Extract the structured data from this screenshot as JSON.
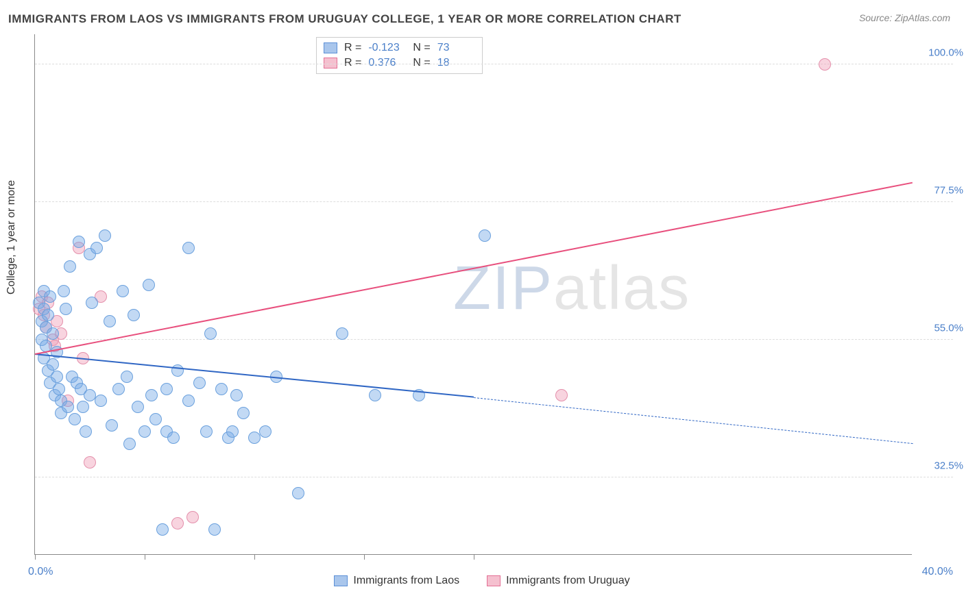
{
  "header": {
    "title": "IMMIGRANTS FROM LAOS VS IMMIGRANTS FROM URUGUAY COLLEGE, 1 YEAR OR MORE CORRELATION CHART",
    "source": "Source: ZipAtlas.com"
  },
  "watermark": {
    "part1": "ZIP",
    "part2": "atlas"
  },
  "axes": {
    "y_title": "College, 1 year or more",
    "x_min_label": "0.0%",
    "x_max_label": "40.0%",
    "xlim": [
      0,
      40
    ],
    "ylim": [
      20,
      105
    ],
    "y_ticks": [
      {
        "v": 32.5,
        "label": "32.5%"
      },
      {
        "v": 55.0,
        "label": "55.0%"
      },
      {
        "v": 77.5,
        "label": "77.5%"
      },
      {
        "v": 100.0,
        "label": "100.0%"
      }
    ],
    "x_tick_positions": [
      0,
      5,
      10,
      15,
      20
    ]
  },
  "legend_top": {
    "rows": [
      {
        "swatch_fill": "#a9c6ec",
        "swatch_border": "#5b8fd6",
        "r_label": "R =",
        "r": "-0.123",
        "n_label": "N =",
        "n": "73"
      },
      {
        "swatch_fill": "#f5c0cf",
        "swatch_border": "#e36f94",
        "r_label": "R =",
        "r": "0.376",
        "n_label": "N =",
        "n": "18"
      }
    ]
  },
  "legend_bottom": {
    "items": [
      {
        "swatch_fill": "#a9c6ec",
        "swatch_border": "#5b8fd6",
        "label": "Immigrants from Laos"
      },
      {
        "swatch_fill": "#f5c0cf",
        "swatch_border": "#e36f94",
        "label": "Immigrants from Uruguay"
      }
    ]
  },
  "series": {
    "laos": {
      "color_fill": "rgba(120,170,230,0.45)",
      "color_stroke": "#6aa0dd",
      "marker_radius": 9,
      "trend": {
        "color": "#2f66c4",
        "x1": 0,
        "y1": 52.5,
        "x2": 20,
        "y2": 45.5,
        "dash_to_x": 40,
        "dash_to_y": 38.0
      },
      "points": [
        [
          0.2,
          61
        ],
        [
          0.3,
          58
        ],
        [
          0.3,
          55
        ],
        [
          0.4,
          63
        ],
        [
          0.4,
          52
        ],
        [
          0.4,
          60
        ],
        [
          0.5,
          57
        ],
        [
          0.5,
          54
        ],
        [
          0.6,
          50
        ],
        [
          0.6,
          59
        ],
        [
          0.7,
          48
        ],
        [
          0.7,
          62
        ],
        [
          0.8,
          56
        ],
        [
          0.8,
          51
        ],
        [
          0.9,
          46
        ],
        [
          1.0,
          53
        ],
        [
          1.0,
          49
        ],
        [
          1.1,
          47
        ],
        [
          1.2,
          45
        ],
        [
          1.2,
          43
        ],
        [
          1.3,
          63
        ],
        [
          1.4,
          60
        ],
        [
          1.5,
          44
        ],
        [
          1.6,
          67
        ],
        [
          1.7,
          49
        ],
        [
          1.8,
          42
        ],
        [
          1.9,
          48
        ],
        [
          2.0,
          71
        ],
        [
          2.1,
          47
        ],
        [
          2.2,
          44
        ],
        [
          2.3,
          40
        ],
        [
          2.5,
          46
        ],
        [
          2.5,
          69
        ],
        [
          2.6,
          61
        ],
        [
          2.8,
          70
        ],
        [
          3.0,
          45
        ],
        [
          3.2,
          72
        ],
        [
          3.4,
          58
        ],
        [
          3.5,
          41
        ],
        [
          3.8,
          47
        ],
        [
          4.0,
          63
        ],
        [
          4.2,
          49
        ],
        [
          4.3,
          38
        ],
        [
          4.5,
          59
        ],
        [
          4.7,
          44
        ],
        [
          5.0,
          40
        ],
        [
          5.2,
          64
        ],
        [
          5.3,
          46
        ],
        [
          5.5,
          42
        ],
        [
          5.8,
          24
        ],
        [
          6.0,
          47
        ],
        [
          6.0,
          40
        ],
        [
          6.3,
          39
        ],
        [
          6.5,
          50
        ],
        [
          7.0,
          45
        ],
        [
          7.0,
          70
        ],
        [
          7.5,
          48
        ],
        [
          7.8,
          40
        ],
        [
          8.0,
          56
        ],
        [
          8.2,
          24
        ],
        [
          8.5,
          47
        ],
        [
          8.8,
          39
        ],
        [
          9.0,
          40
        ],
        [
          9.2,
          46
        ],
        [
          9.5,
          43
        ],
        [
          10.0,
          39
        ],
        [
          10.5,
          40
        ],
        [
          11.0,
          49
        ],
        [
          12.0,
          30
        ],
        [
          14.0,
          56
        ],
        [
          15.5,
          46
        ],
        [
          17.5,
          46
        ],
        [
          20.5,
          72
        ]
      ]
    },
    "uruguay": {
      "color_fill": "rgba(240,160,185,0.45)",
      "color_stroke": "#e48fab",
      "marker_radius": 9,
      "trend": {
        "color": "#e84f7d",
        "x1": 0,
        "y1": 52.5,
        "x2": 40,
        "y2": 80.5
      },
      "points": [
        [
          0.2,
          60
        ],
        [
          0.3,
          62
        ],
        [
          0.4,
          59
        ],
        [
          0.5,
          57
        ],
        [
          0.6,
          61
        ],
        [
          0.8,
          55
        ],
        [
          0.9,
          54
        ],
        [
          1.0,
          58
        ],
        [
          1.2,
          56
        ],
        [
          1.5,
          45
        ],
        [
          2.0,
          70
        ],
        [
          2.2,
          52
        ],
        [
          2.5,
          35
        ],
        [
          3.0,
          62
        ],
        [
          6.5,
          25
        ],
        [
          7.2,
          26
        ],
        [
          24.0,
          46
        ],
        [
          36.0,
          100
        ]
      ]
    }
  },
  "style": {
    "background": "#ffffff",
    "grid_color": "#dddddd",
    "axis_color": "#888888",
    "label_color": "#4a7fc9",
    "title_color": "#444444",
    "title_fontsize": 17,
    "label_fontsize": 16,
    "watermark_fontsize": 90
  }
}
